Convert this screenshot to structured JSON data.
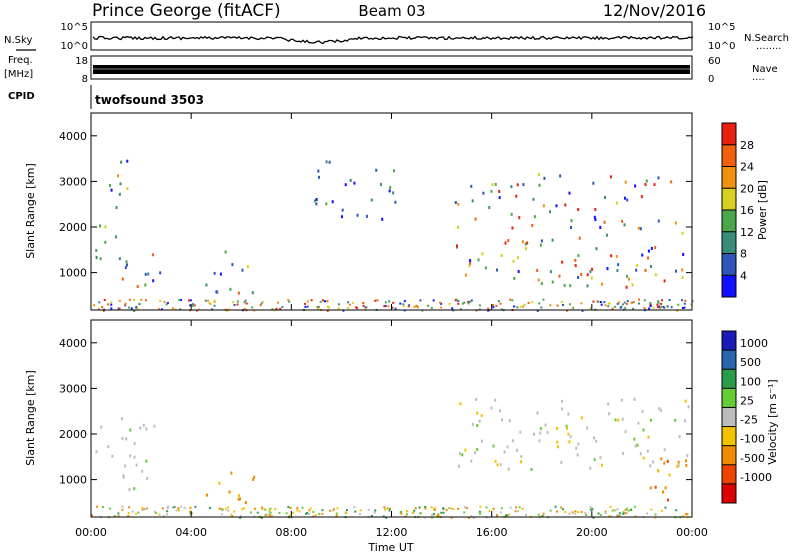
{
  "header": {
    "title": "Prince George (fitACF)",
    "beam": "Beam 03",
    "date": "12/Nov/2016"
  },
  "left_labels": {
    "nsky": "N.Sky",
    "freq": "Freq.",
    "freq_unit": "[MHz]",
    "cpid": "CPID"
  },
  "right_labels": {
    "nsearch": "N.Search",
    "nsearch_dots": "........",
    "nave": "Nave",
    "nave_dots": "...."
  },
  "noise_panel": {
    "left_ticks": [
      "10^5",
      "10^0"
    ],
    "right_ticks": [
      "10^5",
      "10^0"
    ]
  },
  "freq_panel": {
    "left_ticks": [
      "18",
      "8"
    ],
    "right_ticks": [
      "60",
      "0"
    ]
  },
  "cpid_panel": {
    "text": "twofsound 3503"
  },
  "colors": {
    "power_scale": [
      "#1010ff",
      "#2e55b8",
      "#3a8c7a",
      "#4aa84a",
      "#d8d020",
      "#f09010",
      "#f06010",
      "#e82010"
    ],
    "velocity_scale": [
      "#1a1ab8",
      "#2a66b0",
      "#2a9c4a",
      "#66cc33",
      "#bdbdbd",
      "#f2c200",
      "#f08a00",
      "#ee4400",
      "#dd0000"
    ]
  },
  "chart_data": [
    {
      "type": "heatmap",
      "title": "Power",
      "ylabel": "Slant Range [km]",
      "yticks": [
        "1000",
        "2000",
        "3000",
        "4000"
      ],
      "ylim": [
        180,
        4500
      ],
      "xlim": [
        0,
        24
      ],
      "colorbar_label": "Power [dB]",
      "colorbar_ticks": [
        "4",
        "8",
        "12",
        "16",
        "20",
        "24",
        "28"
      ],
      "colorbar_range": [
        0,
        32
      ],
      "echo_regions": [
        {
          "t_start": 0.1,
          "t_end": 1.5,
          "r_low": 1100,
          "r_high": 3500,
          "peak_db": 20
        },
        {
          "t_start": 1.0,
          "t_end": 3.0,
          "r_low": 700,
          "r_high": 1500,
          "peak_db": 24
        },
        {
          "t_start": 4.5,
          "t_end": 6.5,
          "r_low": 400,
          "r_high": 1500,
          "peak_db": 24
        },
        {
          "t_start": 8.8,
          "t_end": 12.2,
          "r_low": 2200,
          "r_high": 3500,
          "peak_db": 12
        },
        {
          "t_start": 14.5,
          "t_end": 24.0,
          "r_low": 700,
          "r_high": 3200,
          "peak_db": 28
        }
      ]
    },
    {
      "type": "heatmap",
      "title": "Velocity",
      "ylabel": "Slant Range [km]",
      "xlabel": "Time UT",
      "xticks": [
        "00:00",
        "04:00",
        "08:00",
        "12:00",
        "16:00",
        "20:00",
        "00:00"
      ],
      "yticks": [
        "1000",
        "2000",
        "3000",
        "4000"
      ],
      "ylim": [
        180,
        4500
      ],
      "xlim": [
        0,
        24
      ],
      "colorbar_label": "Velocity [m s⁻¹]",
      "colorbar_ticks": [
        "1000",
        "500",
        "100",
        "25",
        "-25",
        "-100",
        "-500",
        "-1000"
      ],
      "echo_regions": [
        {
          "t_start": 0.1,
          "t_end": 2.5,
          "r_low": 800,
          "r_high": 2400,
          "velocity": "gray"
        },
        {
          "t_start": 4.5,
          "t_end": 6.5,
          "r_low": 400,
          "r_high": 1200,
          "velocity": "-100"
        },
        {
          "t_start": 14.5,
          "t_end": 24.0,
          "r_low": 1200,
          "r_high": 2800,
          "velocity": "gray"
        },
        {
          "t_start": 22.0,
          "t_end": 24.0,
          "r_low": 400,
          "r_high": 1600,
          "velocity": "-100"
        }
      ]
    }
  ]
}
